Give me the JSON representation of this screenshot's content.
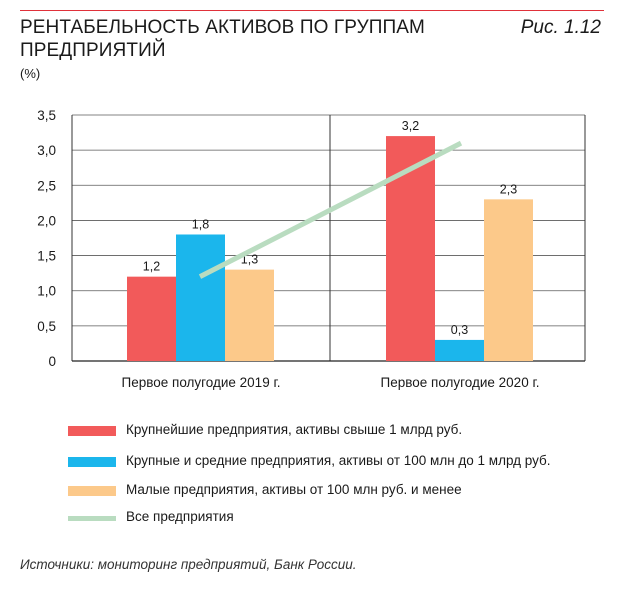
{
  "header": {
    "title": "РЕНТАБЕЛЬНОСТЬ АКТИВОВ ПО ГРУППАМ ПРЕДПРИЯТИЙ",
    "figure_number": "Рис. 1.12",
    "unit": "(%)"
  },
  "source": "Источники: мониторинг предприятий, Банк России.",
  "colors": {
    "accent_rule": "#e0313a",
    "largest": "#f25a5a",
    "large_medium": "#1bb6ec",
    "small": "#fcc98a",
    "all": "#b9dcc0",
    "grid": "#555555"
  },
  "chart_data": {
    "type": "bar",
    "categories": [
      "Первое полугодие 2019 г.",
      "Первое полугодие 2020 г."
    ],
    "series": [
      {
        "name": "Крупнейшие предприятия, активы свыше 1 млрд руб.",
        "values": [
          1.2,
          3.2
        ],
        "labels": [
          "1,2",
          "3,2"
        ],
        "color": "#f25a5a"
      },
      {
        "name": "Крупные и средние предприятия, активы от 100 млн до 1 млрд руб.",
        "values": [
          1.8,
          0.3
        ],
        "labels": [
          "1,8",
          "0,3"
        ],
        "color": "#1bb6ec"
      },
      {
        "name": "Малые предприятия, активы от 100 млн руб. и менее",
        "values": [
          1.3,
          2.3
        ],
        "labels": [
          "1,3",
          "2,3"
        ],
        "color": "#fcc98a"
      }
    ],
    "line_series": {
      "name": "Все предприятия",
      "values": [
        1.2,
        3.1
      ],
      "color": "#b9dcc0"
    },
    "y_ticks": [
      "0",
      "0,5",
      "1,0",
      "1,5",
      "2,0",
      "2,5",
      "3,0",
      "3,5"
    ],
    "y_tick_values": [
      0,
      0.5,
      1.0,
      1.5,
      2.0,
      2.5,
      3.0,
      3.5
    ],
    "ylim": [
      0,
      3.5
    ],
    "grid": true,
    "legend_position": "bottom"
  }
}
